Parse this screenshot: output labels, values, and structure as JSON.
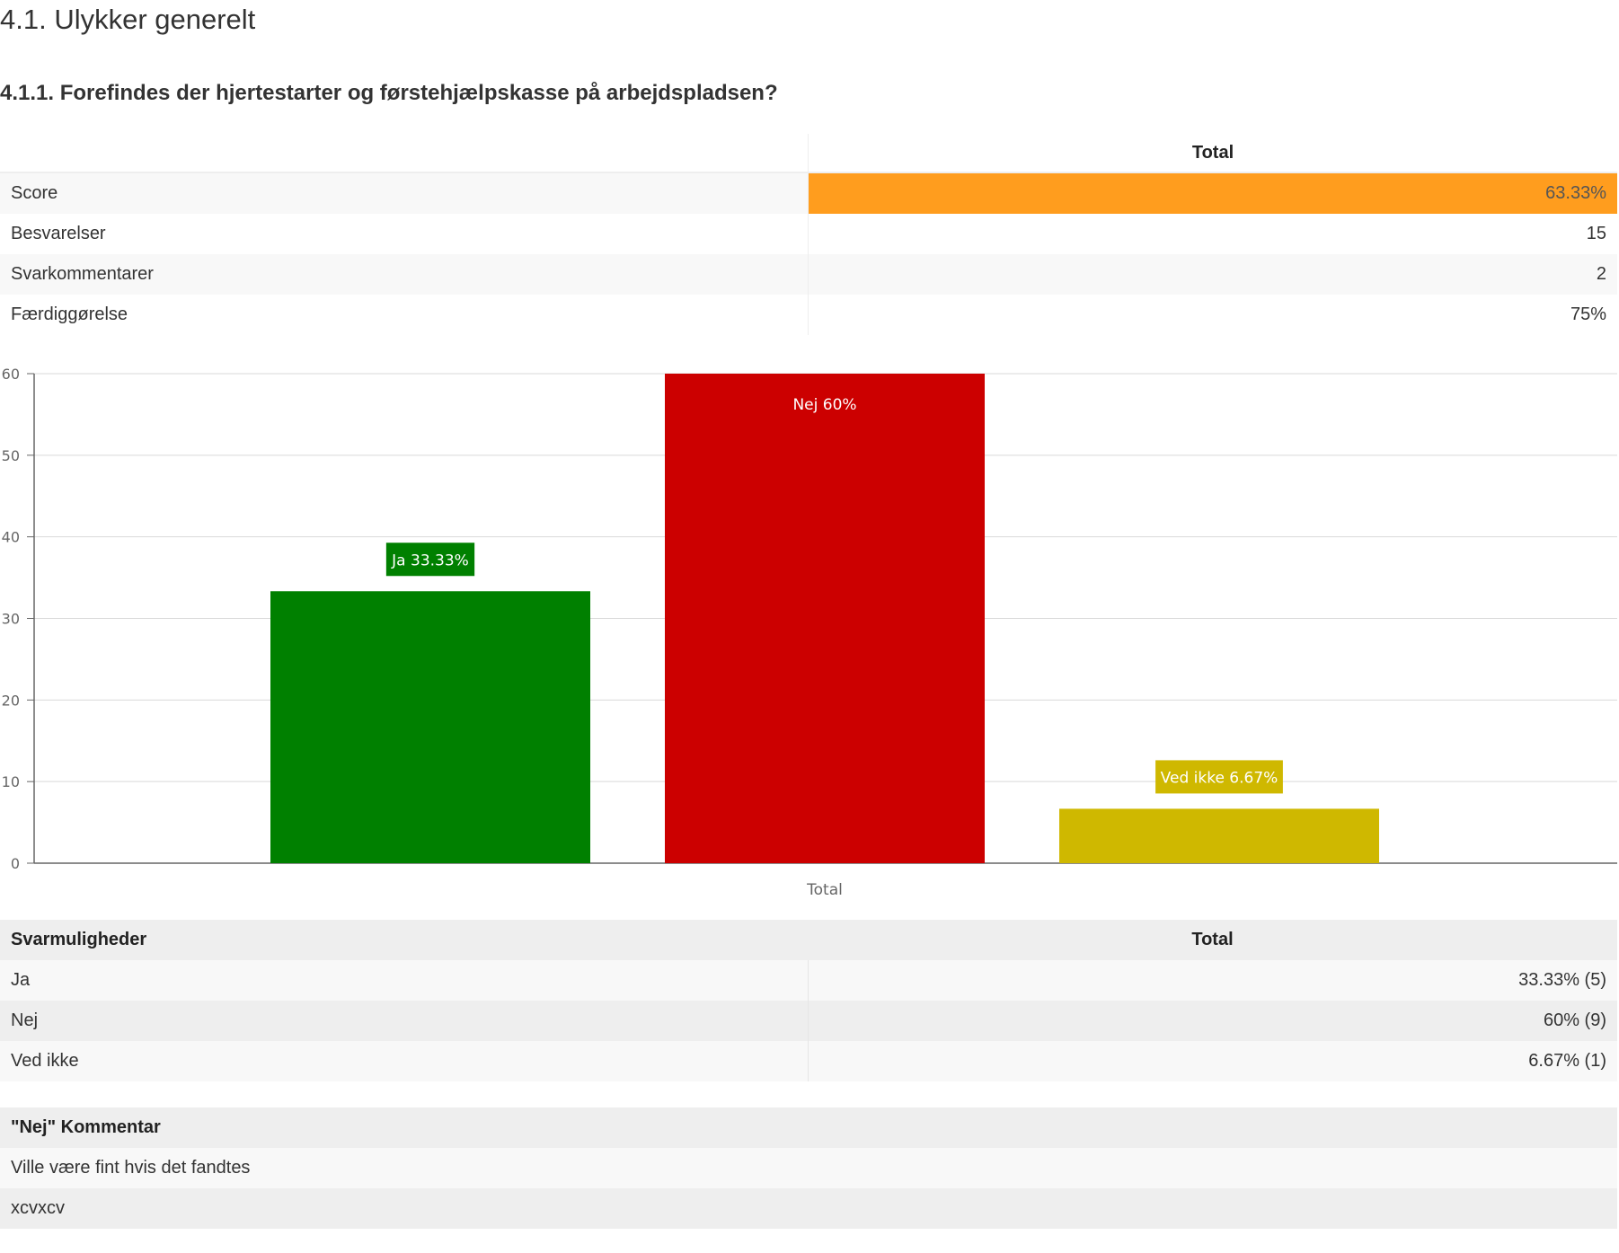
{
  "section_title": "4.1. Ulykker generelt",
  "question_title": "4.1.1. Forefindes der hjertestarter og førstehjælpskasse på arbejdspladsen?",
  "summary": {
    "header_total": "Total",
    "rows": [
      {
        "label": "Score",
        "value": "63.33%"
      },
      {
        "label": "Besvarelser",
        "value": "15"
      },
      {
        "label": "Svarkommentarer",
        "value": "2"
      },
      {
        "label": "Færdiggørelse",
        "value": "75%"
      }
    ],
    "score_color": "#ff9d1e"
  },
  "chart_data": {
    "type": "bar",
    "categories": [
      "Total"
    ],
    "xlabel": "Total",
    "ylabel": "",
    "ylim": [
      0,
      60
    ],
    "yticks": [
      "0",
      "10",
      "20",
      "30",
      "40",
      "50",
      "60"
    ],
    "grid": true,
    "series": [
      {
        "name": "Ja",
        "values": [
          33.33
        ],
        "color": "#008000",
        "label": "Ja 33.33%"
      },
      {
        "name": "Nej",
        "values": [
          60
        ],
        "color": "#cc0000",
        "label": "Nej 60%"
      },
      {
        "name": "Ved ikke",
        "values": [
          6.67
        ],
        "color": "#cfb800",
        "label": "Ved ikke 6.67%"
      }
    ]
  },
  "options": {
    "header_label": "Svarmuligheder",
    "header_total": "Total",
    "rows": [
      {
        "label": "Ja",
        "value": "33.33% (5)"
      },
      {
        "label": "Nej",
        "value": "60% (9)"
      },
      {
        "label": "Ved ikke",
        "value": "6.67% (1)"
      }
    ]
  },
  "comments": {
    "header": "\"Nej\" Kommentar",
    "rows": [
      "Ville være fint hvis det fandtes",
      "xcvxcv"
    ]
  }
}
